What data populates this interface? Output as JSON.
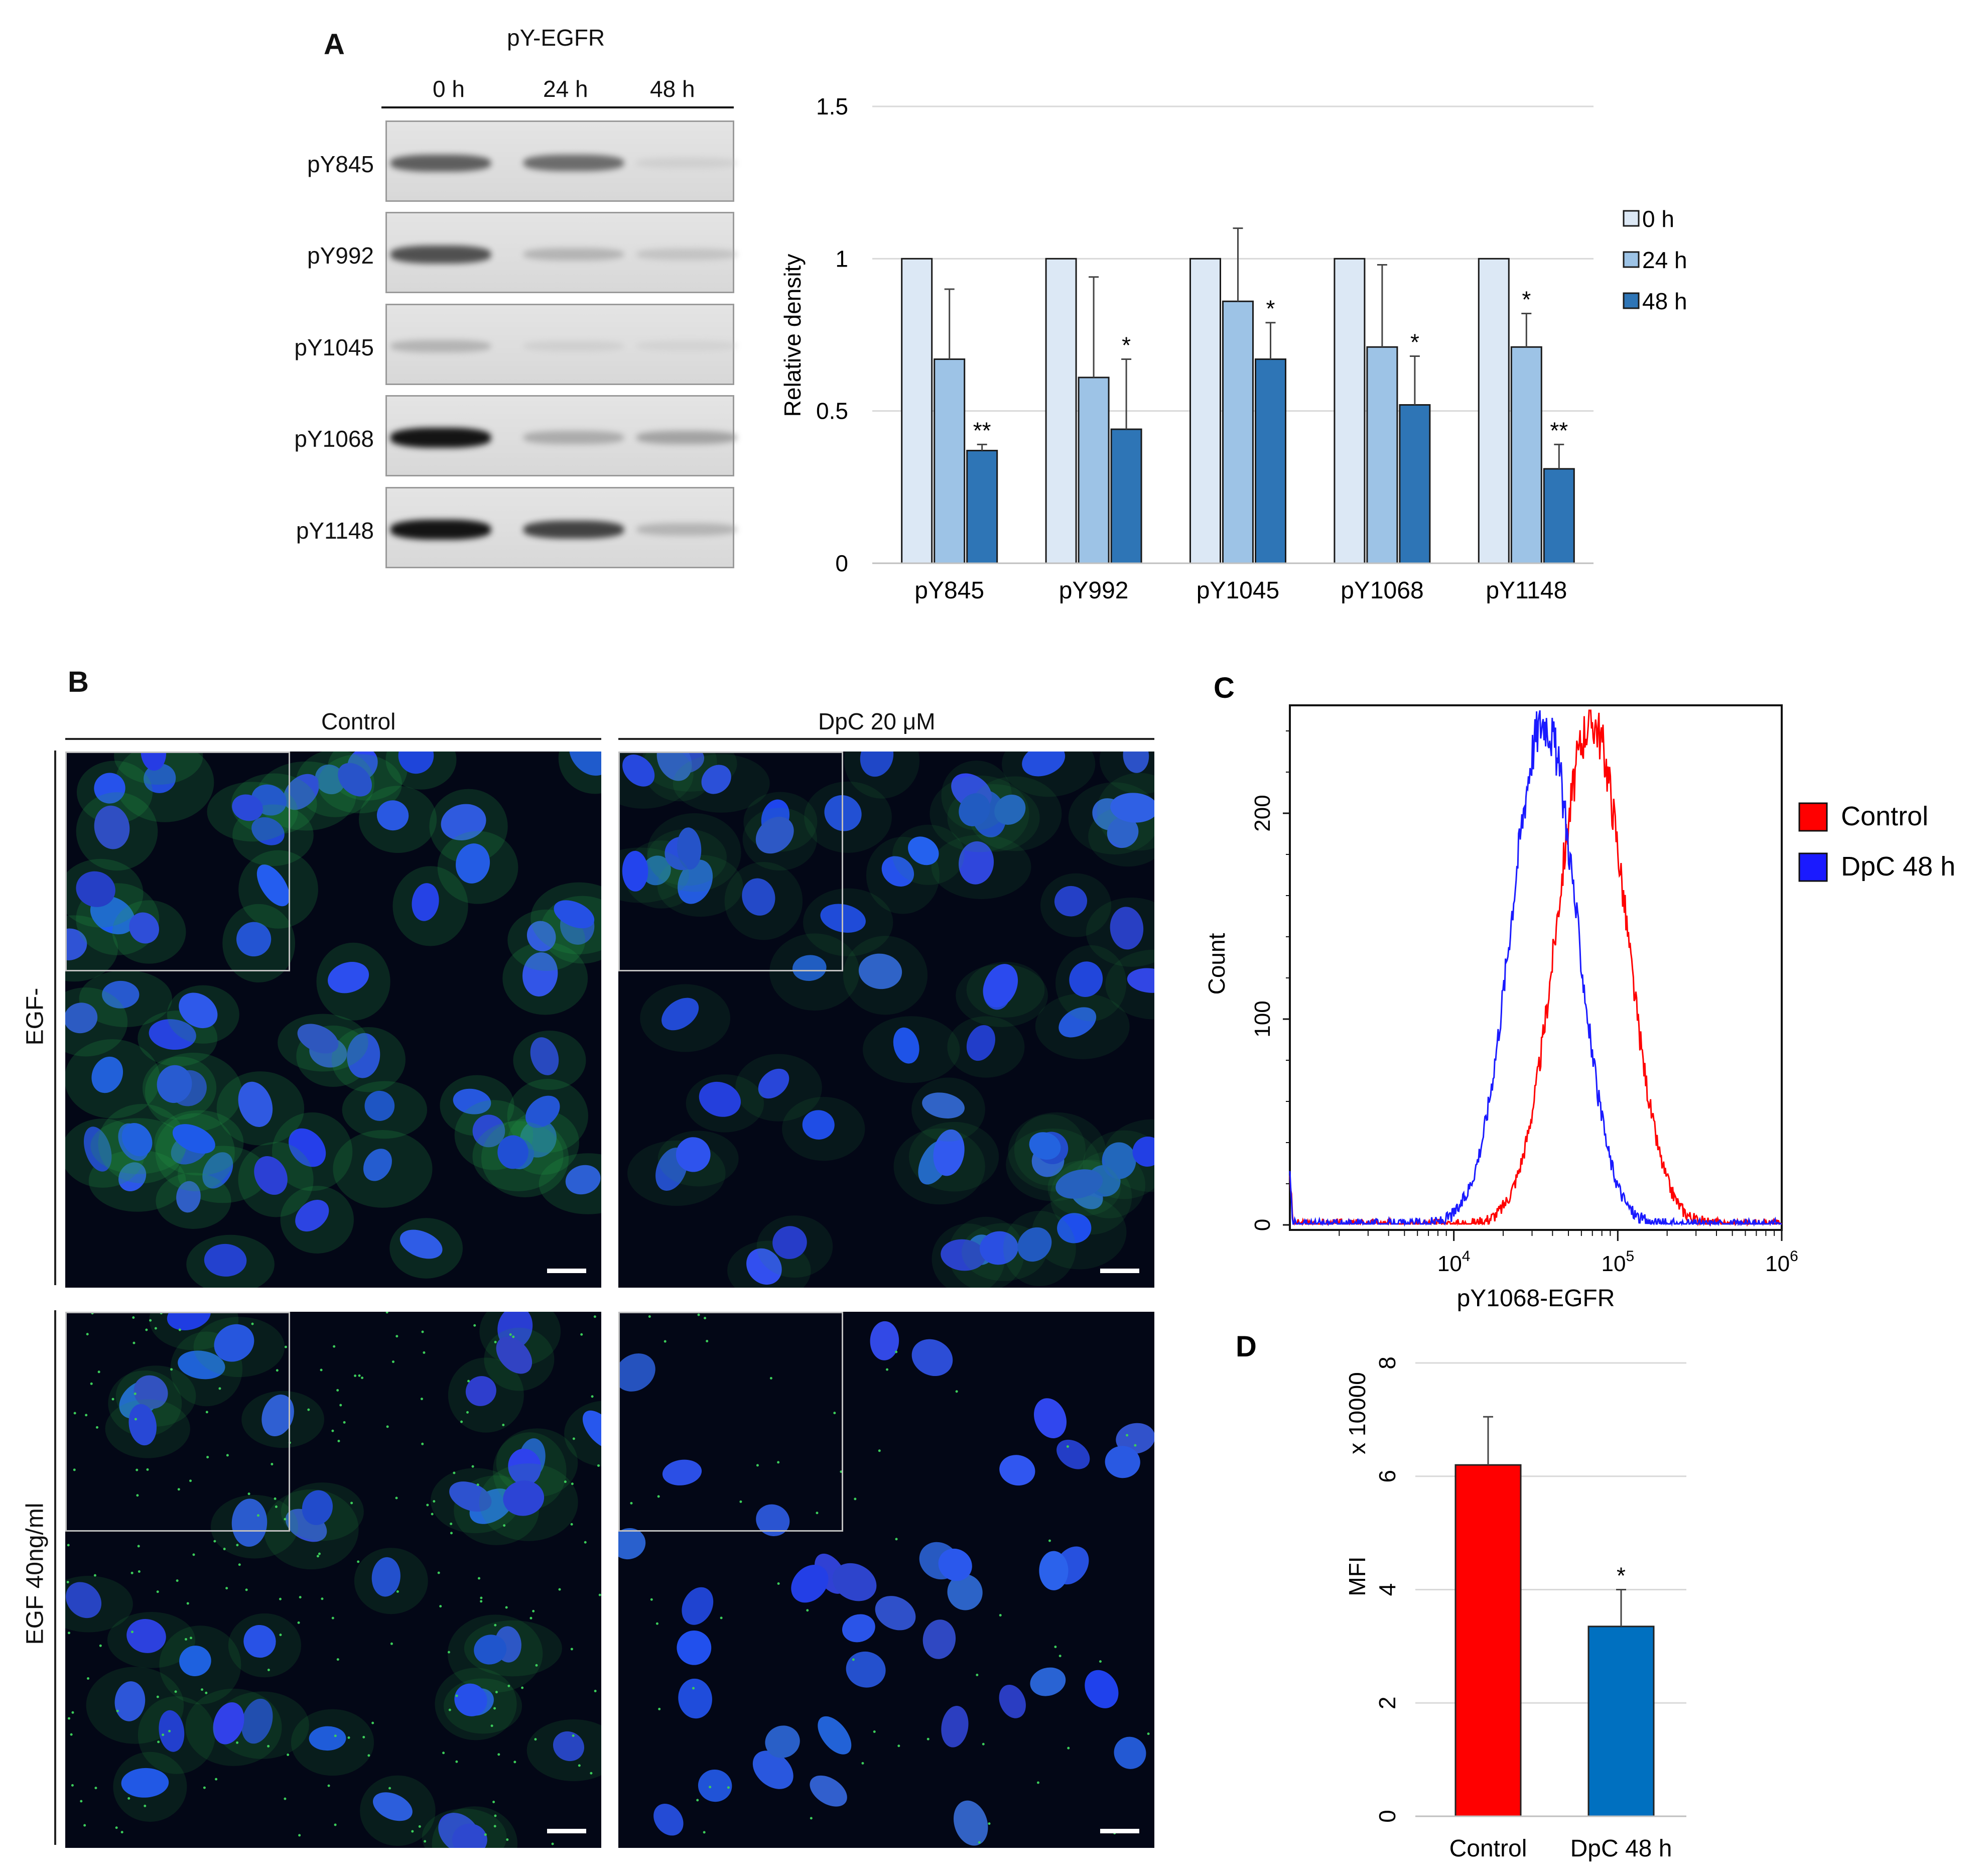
{
  "panels": {
    "a": {
      "letter": "A"
    },
    "b": {
      "letter": "B"
    },
    "c": {
      "letter": "C"
    },
    "d": {
      "letter": "D"
    }
  },
  "western_blot": {
    "title": "pY-EGFR",
    "timepoints": [
      "0 h",
      "24 h",
      "48 h"
    ],
    "rows": [
      {
        "label": "pY845",
        "band_intensity": [
          0.75,
          0.7,
          0.15
        ]
      },
      {
        "label": "pY992",
        "band_intensity": [
          0.8,
          0.35,
          0.25
        ]
      },
      {
        "label": "pY1045",
        "band_intensity": [
          0.35,
          0.15,
          0.12
        ]
      },
      {
        "label": "pY1068",
        "band_intensity": [
          1.0,
          0.4,
          0.45
        ]
      },
      {
        "label": "pY1148",
        "band_intensity": [
          1.0,
          0.85,
          0.35
        ]
      }
    ]
  },
  "microscopy": {
    "col_headers": [
      "Control",
      "DpC 20 μM"
    ],
    "row_labels": [
      "EGF-",
      "EGF 40ng/ml"
    ]
  },
  "chart_data": [
    {
      "id": "A-bar",
      "type": "bar",
      "categories": [
        "pY845",
        "pY992",
        "pY1045",
        "pY1068",
        "pY1148"
      ],
      "series": [
        {
          "name": "0 h",
          "values": [
            1,
            1,
            1,
            1,
            1
          ],
          "errors": [
            0,
            0,
            0,
            0,
            0
          ],
          "color": "#dce8f5"
        },
        {
          "name": "24 h",
          "values": [
            0.67,
            0.61,
            0.86,
            0.71,
            0.71
          ],
          "errors": [
            0.23,
            0.33,
            0.24,
            0.27,
            0.11
          ],
          "color": "#9dc3e6"
        },
        {
          "name": "48 h",
          "values": [
            0.37,
            0.44,
            0.67,
            0.52,
            0.31
          ],
          "errors": [
            0.02,
            0.23,
            0.12,
            0.16,
            0.08
          ],
          "color": "#2e75b6"
        }
      ],
      "significance": [
        [
          "",
          "",
          "**"
        ],
        [
          "",
          "",
          "*"
        ],
        [
          "",
          "",
          "*"
        ],
        [
          "",
          "",
          "*"
        ],
        [
          "",
          "*",
          "**"
        ]
      ],
      "ylabel": "Relative density",
      "ylim": [
        0,
        1.5
      ],
      "yticks": [
        "0",
        "0.5",
        "1",
        "1.5"
      ],
      "grid": true,
      "legend_position": "right"
    },
    {
      "id": "C-histogram",
      "type": "line",
      "xlabel": "pY1068-EGFR",
      "ylabel": "Count",
      "xscale": "log",
      "xlim": [
        1000,
        1000000
      ],
      "ylim": [
        0,
        250
      ],
      "xticks": [
        "10",
        "10",
        "10"
      ],
      "xtick_exponents": [
        "4",
        "5",
        "6"
      ],
      "yticks": [
        "0",
        "100",
        "200"
      ],
      "series": [
        {
          "name": "Control",
          "color": "#ff0000",
          "log10_peak": 4.84,
          "log10_sd": 0.21,
          "peak_count": 245
        },
        {
          "name": "DpC 48 h",
          "color": "#1a1aff",
          "log10_peak": 4.55,
          "log10_sd": 0.2,
          "peak_count": 245
        }
      ],
      "legend_position": "right"
    },
    {
      "id": "D-bar",
      "type": "bar",
      "categories": [
        "Control",
        "DpC 48 h"
      ],
      "values": [
        6.2,
        3.35
      ],
      "errors": [
        0.85,
        0.65
      ],
      "significance": [
        "",
        "*"
      ],
      "colors": [
        "#ff0000",
        "#0070c0"
      ],
      "ylabel": "MFI",
      "ylabel_unit": "x 10000",
      "ylim": [
        0,
        8
      ],
      "yticks": [
        "0",
        "2",
        "4",
        "6",
        "8"
      ],
      "grid": true
    }
  ]
}
